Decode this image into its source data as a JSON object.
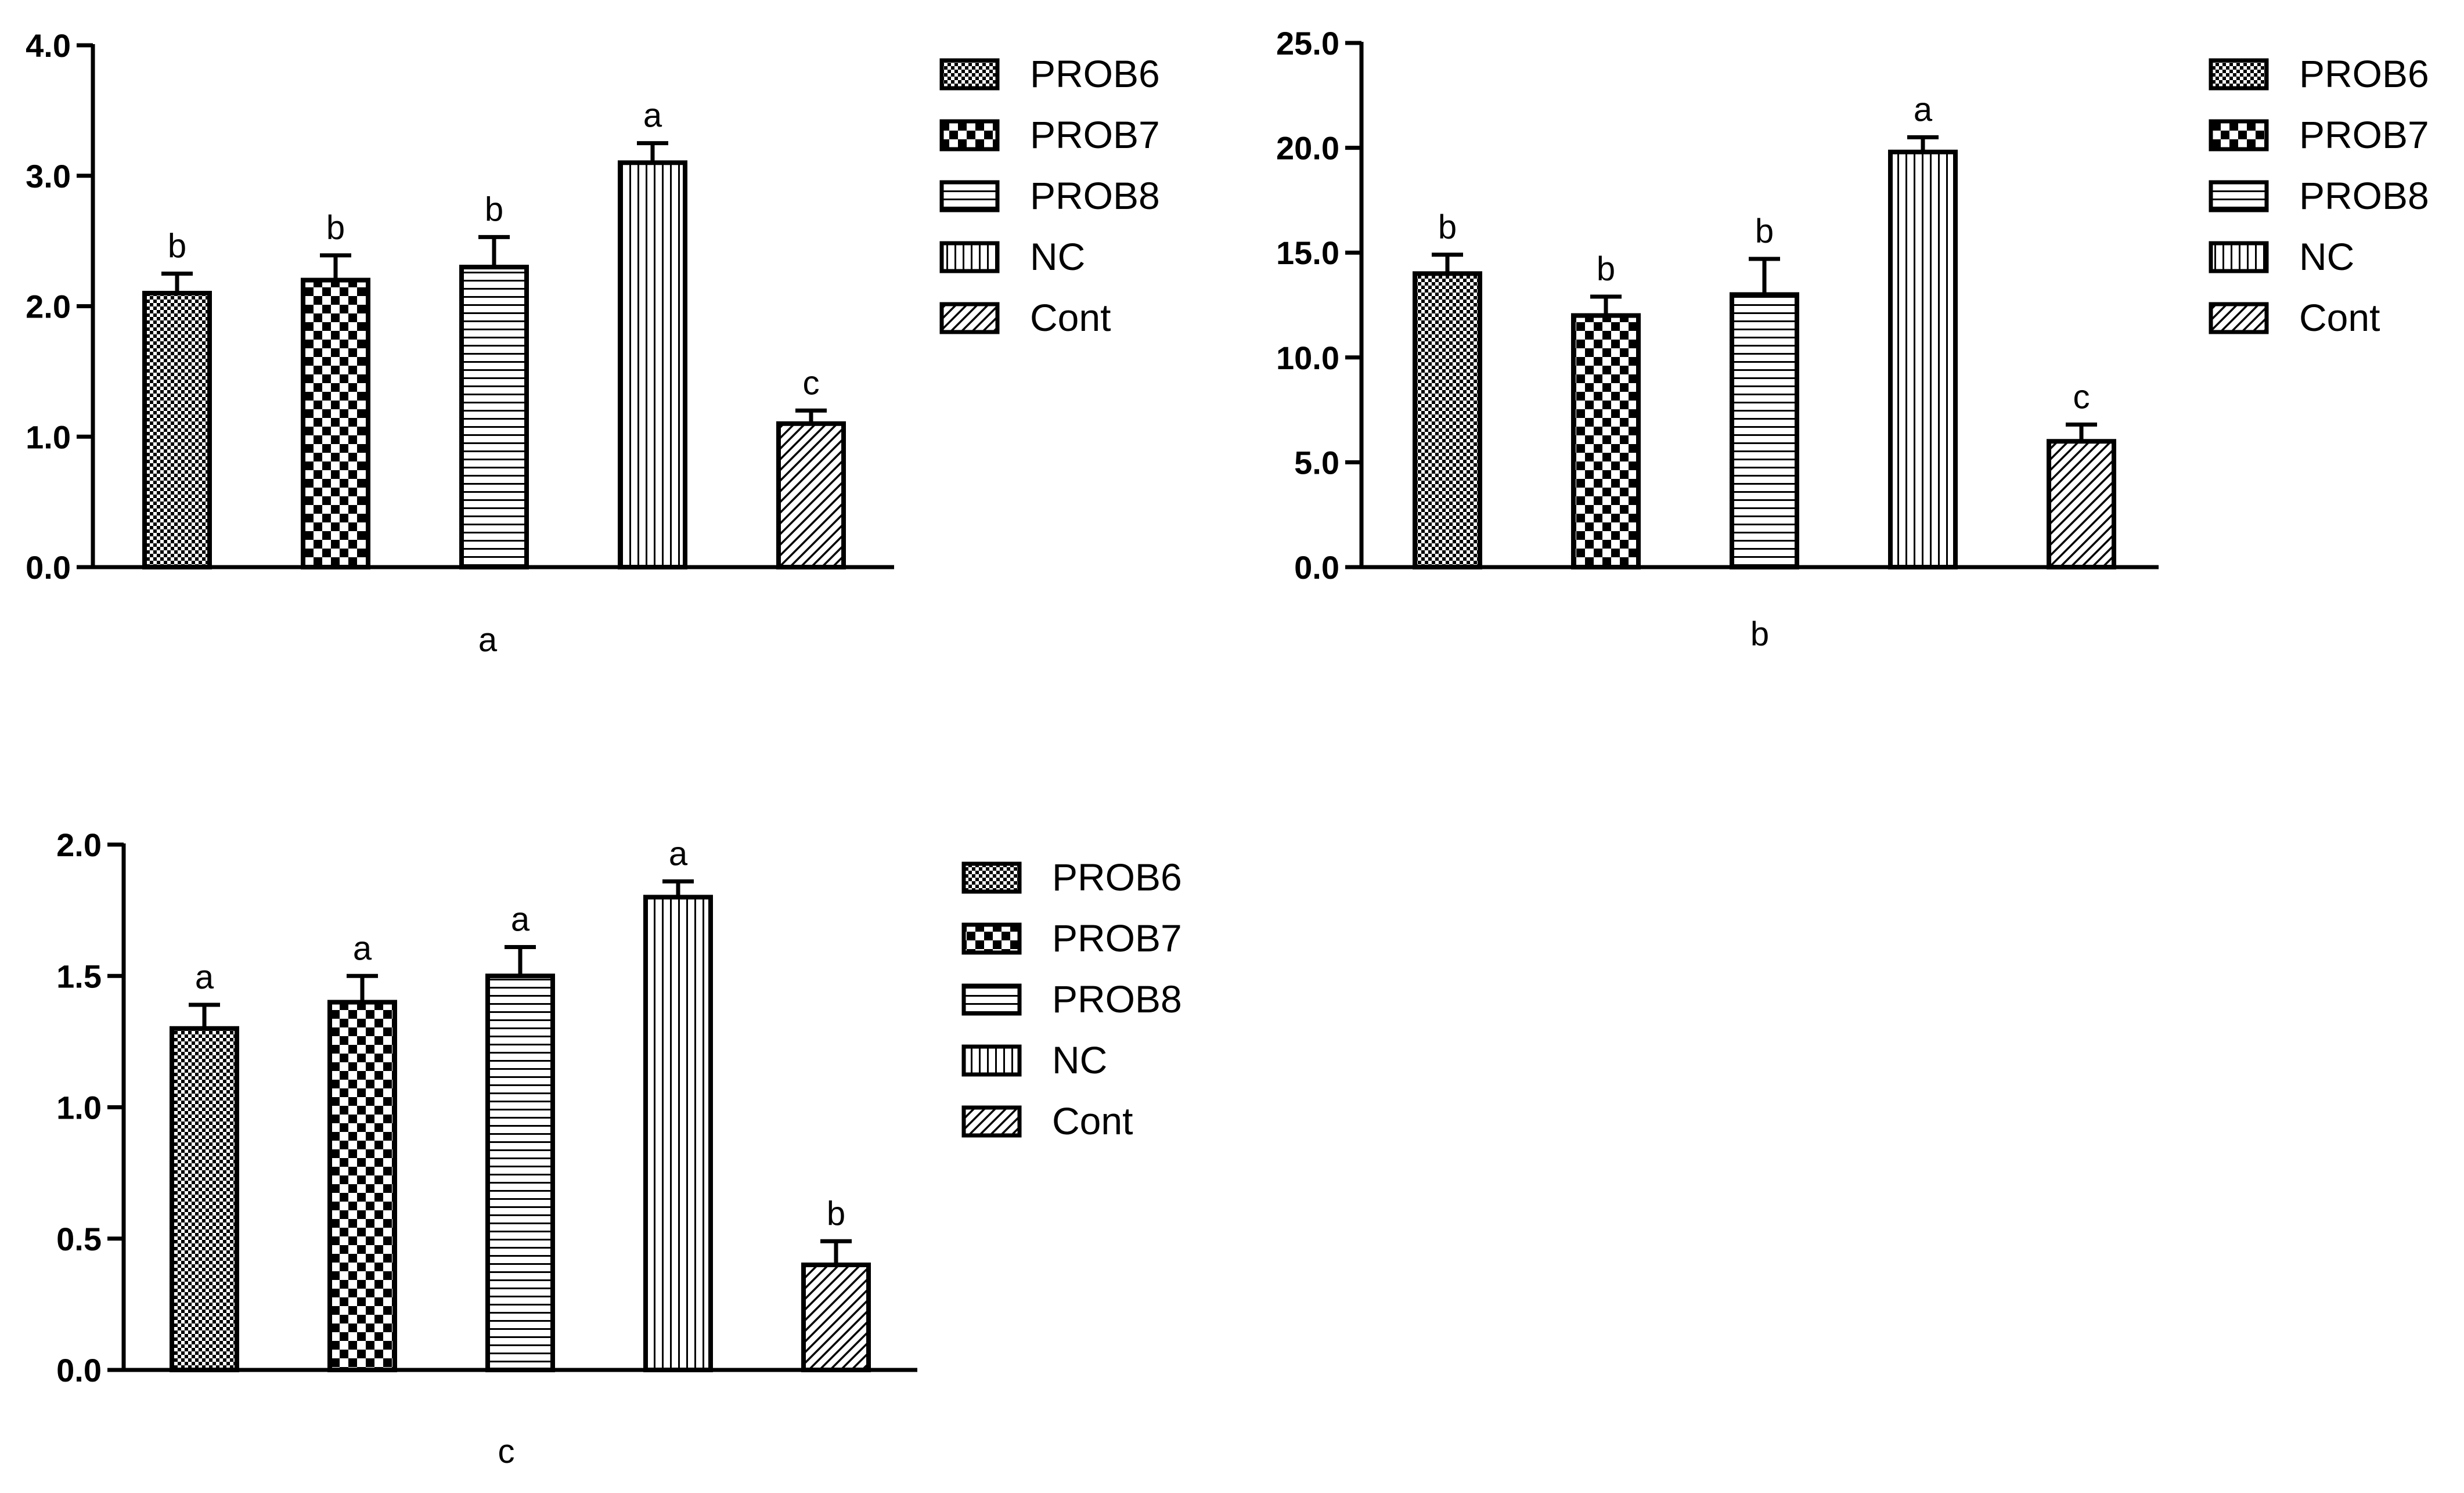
{
  "chart_data": [
    {
      "type": "bar",
      "panel_label": "a",
      "categories": [
        "PROB6",
        "PROB7",
        "PROB8",
        "NC",
        "Cont"
      ],
      "values": [
        2.1,
        2.2,
        2.3,
        3.1,
        1.1
      ],
      "errors": [
        0.15,
        0.19,
        0.23,
        0.15,
        0.1
      ],
      "significance": [
        "b",
        "b",
        "b",
        "a",
        "c"
      ],
      "ylim": [
        0,
        4
      ],
      "yticks": [
        "0.0",
        "1.0",
        "2.0",
        "3.0",
        "4.0"
      ],
      "ytick_values": [
        0,
        1,
        2,
        3,
        4
      ],
      "legend": [
        "PROB6",
        "PROB7",
        "PROB8",
        "NC",
        "Cont"
      ],
      "legend_position": "top-right",
      "title": "",
      "xlabel": "",
      "ylabel": ""
    },
    {
      "type": "bar",
      "panel_label": "b",
      "categories": [
        "PROB6",
        "PROB7",
        "PROB8",
        "NC",
        "Cont"
      ],
      "values": [
        14,
        12,
        13,
        19.8,
        6
      ],
      "errors": [
        0.9,
        0.9,
        1.7,
        0.7,
        0.8
      ],
      "significance": [
        "b",
        "b",
        "b",
        "a",
        "c"
      ],
      "ylim": [
        0,
        25
      ],
      "yticks": [
        "0.0",
        "5.0",
        "10.0",
        "15.0",
        "20.0",
        "25.0"
      ],
      "ytick_values": [
        0,
        5,
        10,
        15,
        20,
        25
      ],
      "legend": [
        "PROB6",
        "PROB7",
        "PROB8",
        "NC",
        "Cont"
      ],
      "legend_position": "top-right",
      "title": "",
      "xlabel": "",
      "ylabel": ""
    },
    {
      "type": "bar",
      "panel_label": "c",
      "categories": [
        "PROB6",
        "PROB7",
        "PROB8",
        "NC",
        "Cont"
      ],
      "values": [
        1.3,
        1.4,
        1.5,
        1.8,
        0.4
      ],
      "errors": [
        0.09,
        0.1,
        0.11,
        0.06,
        0.09
      ],
      "significance": [
        "a",
        "a",
        "a",
        "a",
        "b"
      ],
      "ylim": [
        0,
        2
      ],
      "yticks": [
        "0.0",
        "0.5",
        "1.0",
        "1.5",
        "2.0"
      ],
      "ytick_values": [
        0,
        0.5,
        1,
        1.5,
        2
      ],
      "legend": [
        "PROB6",
        "PROB7",
        "PROB8",
        "NC",
        "Cont"
      ],
      "legend_position": "top-right",
      "title": "",
      "xlabel": "",
      "ylabel": ""
    }
  ]
}
